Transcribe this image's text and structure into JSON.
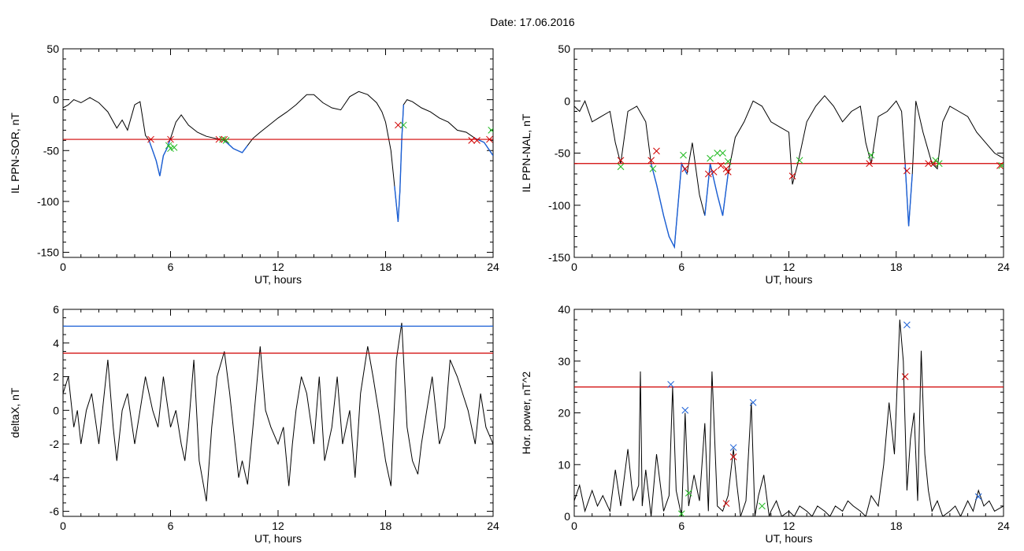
{
  "header": {
    "date_label": "Date:",
    "date_value": "17.06.2016"
  },
  "chart_data": [
    {
      "type": "line",
      "ylabel": "IL PPN-SOR, nT",
      "xlabel": "UT, hours",
      "xlim": [
        0,
        24
      ],
      "ylim": [
        -155,
        50
      ],
      "xticks": [
        0,
        6,
        12,
        18,
        24
      ],
      "yticks": [
        50,
        0,
        -50,
        -100,
        -150
      ],
      "threshold": {
        "value": -39,
        "color": "#d00000"
      },
      "series": [
        {
          "color": "#000000",
          "x": [
            0,
            0.3,
            0.6,
            1,
            1.5,
            2,
            2.5,
            3,
            3.3,
            3.6,
            4,
            4.3,
            4.6,
            4.8,
            5,
            5.2,
            5.4,
            5.6,
            5.8,
            6,
            6.3,
            6.6,
            7,
            7.5,
            8,
            8.5,
            9,
            9.5,
            10,
            10.3,
            10.6,
            11,
            11.5,
            12,
            12.5,
            13,
            13.3,
            13.6,
            14,
            14.5,
            15,
            15.5,
            16,
            16.5,
            17,
            17.5,
            17.8,
            18,
            18.3,
            18.5,
            18.7,
            18.8,
            18.9,
            19,
            19.2,
            19.5,
            20,
            20.5,
            21,
            21.5,
            22,
            22.5,
            23,
            23.5,
            24
          ],
          "y": [
            -8,
            -5,
            0,
            -3,
            2,
            -3,
            -12,
            -28,
            -20,
            -30,
            -5,
            -2,
            -35,
            -40,
            -50,
            -60,
            -75,
            -55,
            -48,
            -38,
            -22,
            -15,
            -25,
            -32,
            -36,
            -38,
            -40,
            -48,
            -52,
            -45,
            -38,
            -32,
            -25,
            -18,
            -12,
            -5,
            0,
            5,
            5,
            -3,
            -8,
            -10,
            3,
            8,
            5,
            -3,
            -12,
            -22,
            -50,
            -85,
            -120,
            -90,
            -40,
            -5,
            0,
            -2,
            -8,
            -12,
            -18,
            -22,
            -30,
            -32,
            -38,
            -42,
            -55
          ]
        }
      ],
      "segments": [
        {
          "color": "#1a5fd6",
          "x_start": 4.8,
          "x_end": 6.2
        },
        {
          "color": "#1a5fd6",
          "x_start": 8.6,
          "x_end": 10.3
        },
        {
          "color": "#1a5fd6",
          "x_start": 18.5,
          "x_end": 19.0
        },
        {
          "color": "#1a5fd6",
          "x_start": 23.0,
          "x_end": 24.0
        }
      ],
      "markers": [
        {
          "color": "#d00000",
          "x": [
            4.9,
            6.0,
            8.7,
            9.0,
            18.7,
            22.8,
            23.1,
            23.8
          ],
          "y": [
            -39,
            -39,
            -39,
            -39,
            -25,
            -40,
            -40,
            -39
          ]
        },
        {
          "color": "#22bb22",
          "x": [
            5.9,
            6.0,
            6.2,
            8.9,
            9.1,
            19.0,
            23.9
          ],
          "y": [
            -45,
            -48,
            -47,
            -39,
            -40,
            -25,
            -30
          ]
        }
      ]
    },
    {
      "type": "line",
      "ylabel": "IL PPN-NAL, nT",
      "xlabel": "UT, hours",
      "xlim": [
        0,
        24
      ],
      "ylim": [
        -150,
        50
      ],
      "xticks": [
        0,
        6,
        12,
        18,
        24
      ],
      "yticks": [
        50,
        0,
        -50,
        -100,
        -150
      ],
      "threshold": {
        "value": -60,
        "color": "#d00000"
      },
      "series": [
        {
          "color": "#000000",
          "x": [
            0,
            0.3,
            0.6,
            1,
            1.5,
            2,
            2.3,
            2.6,
            3,
            3.5,
            4,
            4.3,
            4.6,
            5,
            5.3,
            5.6,
            6,
            6.3,
            6.6,
            7,
            7.3,
            7.6,
            8,
            8.3,
            8.6,
            9,
            9.5,
            10,
            10.5,
            11,
            11.5,
            12,
            12.2,
            12.5,
            13,
            13.5,
            14,
            14.5,
            15,
            15.5,
            16,
            16.3,
            16.6,
            17,
            17.5,
            18,
            18.3,
            18.5,
            18.7,
            18.9,
            19.1,
            19.5,
            20,
            20.3,
            20.6,
            21,
            21.5,
            22,
            22.5,
            23,
            23.5,
            24
          ],
          "y": [
            -5,
            -10,
            0,
            -20,
            -15,
            -10,
            -40,
            -60,
            -10,
            -5,
            -20,
            -60,
            -80,
            -110,
            -130,
            -140,
            -60,
            -70,
            -40,
            -90,
            -110,
            -60,
            -90,
            -110,
            -70,
            -35,
            -20,
            0,
            -5,
            -20,
            -25,
            -30,
            -80,
            -60,
            -20,
            -5,
            5,
            -5,
            -20,
            -10,
            -5,
            -40,
            -60,
            -15,
            -10,
            0,
            -10,
            -60,
            -120,
            -70,
            0,
            -30,
            -60,
            -65,
            -20,
            -5,
            -10,
            -15,
            -30,
            -40,
            -50,
            -55
          ]
        }
      ],
      "segments": [
        {
          "color": "#1a5fd6",
          "x_start": 4.3,
          "x_end": 6.5
        },
        {
          "color": "#1a5fd6",
          "x_start": 7.2,
          "x_end": 8.6
        },
        {
          "color": "#1a5fd6",
          "x_start": 12.1,
          "x_end": 12.4
        },
        {
          "color": "#1a5fd6",
          "x_start": 18.5,
          "x_end": 18.9
        }
      ],
      "markers": [
        {
          "color": "#d00000",
          "x": [
            2.6,
            4.3,
            4.6,
            6.2,
            7.5,
            7.8,
            8.2,
            8.5,
            8.6,
            12.2,
            16.5,
            18.6,
            19.8,
            20.1,
            23.8
          ],
          "y": [
            -57,
            -57,
            -48,
            -65,
            -70,
            -68,
            -62,
            -65,
            -68,
            -72,
            -60,
            -67,
            -60,
            -60,
            -62
          ]
        },
        {
          "color": "#22bb22",
          "x": [
            2.6,
            4.4,
            6.1,
            7.6,
            8.0,
            8.3,
            8.6,
            12.6,
            16.6,
            20.2,
            20.4,
            23.9
          ],
          "y": [
            -63,
            -65,
            -52,
            -55,
            -50,
            -50,
            -58,
            -57,
            -52,
            -57,
            -60,
            -62
          ]
        }
      ]
    },
    {
      "type": "line",
      "ylabel": "deltaX, nT",
      "xlabel": "UT, hours",
      "xlim": [
        0,
        24
      ],
      "ylim": [
        -6.3,
        6
      ],
      "xticks": [
        0,
        6,
        12,
        18,
        24
      ],
      "yticks": [
        6,
        4,
        2,
        0,
        -2,
        -4,
        -6
      ],
      "threshold": {
        "value": 3.4,
        "color": "#d00000"
      },
      "threshold2": {
        "value": 5.0,
        "color": "#1a5fd6"
      },
      "series": [
        {
          "color": "#000000",
          "x": [
            0,
            0.3,
            0.6,
            0.8,
            1,
            1.3,
            1.6,
            2,
            2.2,
            2.5,
            2.8,
            3,
            3.3,
            3.6,
            4,
            4.3,
            4.6,
            5,
            5.3,
            5.6,
            6,
            6.3,
            6.6,
            6.8,
            7,
            7.3,
            7.6,
            8,
            8.3,
            8.6,
            9,
            9.3,
            9.6,
            9.8,
            10,
            10.3,
            10.6,
            11,
            11.3,
            11.6,
            12,
            12.3,
            12.6,
            12.8,
            13,
            13.3,
            13.6,
            14,
            14.3,
            14.6,
            15,
            15.3,
            15.6,
            16,
            16.3,
            16.6,
            17,
            17.3,
            17.6,
            18,
            18.3,
            18.6,
            18.9,
            19.2,
            19.5,
            19.8,
            20,
            20.3,
            20.6,
            21,
            21.3,
            21.6,
            22,
            22.3,
            22.6,
            23,
            23.3,
            23.6,
            24
          ],
          "y": [
            1,
            2,
            -1,
            0,
            -2,
            0,
            1,
            -2,
            0,
            3,
            -1,
            -3,
            0,
            1,
            -2,
            0,
            2,
            0,
            -1,
            2,
            -1,
            0,
            -2,
            -3,
            -1,
            3,
            -3,
            -5.4,
            -1,
            2,
            3.5,
            1,
            -2,
            -4,
            -3,
            -4.4,
            -1,
            3.8,
            0,
            -1,
            -2,
            -1,
            -4.5,
            -2,
            0,
            2,
            1,
            -2,
            2,
            -3,
            -1,
            2,
            -2,
            0,
            -4,
            1,
            3.8,
            2,
            0,
            -3,
            -4.5,
            3,
            5.2,
            -1,
            -3,
            -3.8,
            -2,
            0,
            2,
            -2,
            -1,
            3,
            2,
            1,
            0,
            -2,
            1,
            -1,
            -2
          ]
        }
      ],
      "markers": []
    },
    {
      "type": "line",
      "ylabel": "Hor. power, nT^2",
      "xlabel": "UT, hours",
      "xlim": [
        0,
        24
      ],
      "ylim": [
        0,
        40
      ],
      "xticks": [
        0,
        6,
        12,
        18,
        24
      ],
      "yticks": [
        40,
        30,
        20,
        10,
        0
      ],
      "threshold": {
        "value": 25,
        "color": "#d00000"
      },
      "series": [
        {
          "color": "#000000",
          "x": [
            0,
            0.3,
            0.6,
            1,
            1.3,
            1.6,
            2,
            2.3,
            2.6,
            3,
            3.3,
            3.6,
            3.7,
            3.8,
            4,
            4.3,
            4.6,
            5,
            5.3,
            5.5,
            5.7,
            6,
            6.2,
            6.4,
            6.7,
            7,
            7.3,
            7.5,
            7.7,
            8,
            8.3,
            8.6,
            8.9,
            9.1,
            9.3,
            9.6,
            9.9,
            10.1,
            10.3,
            10.6,
            10.9,
            11,
            11.3,
            11.6,
            12,
            12.3,
            12.6,
            13,
            13.3,
            13.6,
            14,
            14.3,
            14.6,
            15,
            15.3,
            15.6,
            16,
            16.3,
            16.6,
            17,
            17.3,
            17.6,
            17.9,
            18.2,
            18.4,
            18.6,
            18.8,
            19,
            19.2,
            19.4,
            19.6,
            19.8,
            20,
            20.3,
            20.6,
            21,
            21.3,
            21.6,
            22,
            22.3,
            22.6,
            22.9,
            23.2,
            23.5,
            24
          ],
          "y": [
            3,
            6,
            1,
            5,
            2,
            4,
            1,
            9,
            2,
            13,
            3,
            6,
            28,
            2,
            9,
            0,
            12,
            1,
            4,
            25,
            5,
            0,
            20,
            2,
            8,
            3,
            18,
            1,
            28,
            2,
            1,
            4,
            13,
            6,
            0,
            3,
            22,
            0,
            4,
            8,
            0,
            1,
            3,
            0,
            1,
            0,
            2,
            1,
            0,
            2,
            1,
            0,
            2,
            1,
            3,
            2,
            1,
            0,
            4,
            2,
            10,
            22,
            12,
            38,
            30,
            5,
            15,
            20,
            3,
            32,
            12,
            5,
            1,
            3,
            0,
            1,
            2,
            0,
            3,
            1,
            5,
            2,
            3,
            1,
            2
          ]
        }
      ],
      "markers": [
        {
          "color": "#d00000",
          "x": [
            8.5,
            8.9,
            18.5
          ],
          "y": [
            2.5,
            11.5,
            27
          ]
        },
        {
          "color": "#1a5fd6",
          "x": [
            5.4,
            6.2,
            8.9,
            10.0,
            18.6,
            22.6
          ],
          "y": [
            25.5,
            20.5,
            13.3,
            22,
            37,
            3.8
          ]
        },
        {
          "color": "#22bb22",
          "x": [
            6.0,
            6.4,
            10.5
          ],
          "y": [
            0.5,
            4.5,
            2
          ]
        }
      ]
    }
  ]
}
